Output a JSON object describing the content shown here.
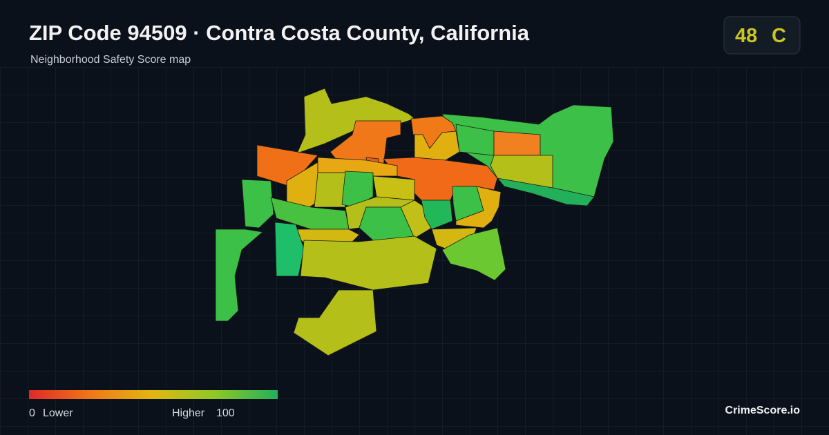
{
  "header": {
    "title": "ZIP Code 94509 · Contra Costa County, California",
    "subtitle": "Neighborhood Safety Score map"
  },
  "score": {
    "value": 48,
    "grade": "C"
  },
  "legend": {
    "min": 0,
    "min_label": "Lower",
    "max_label": "Higher",
    "max": 100
  },
  "brand": "CrimeScore.io"
}
